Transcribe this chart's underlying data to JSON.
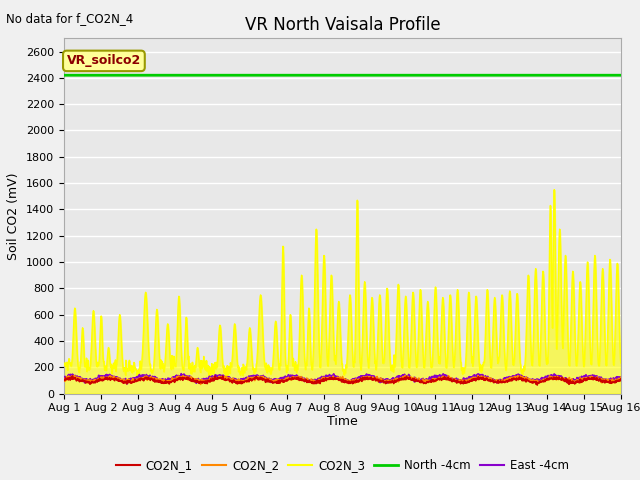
{
  "title": "VR North Vaisala Profile",
  "top_left_text": "No data for f_CO2N_4",
  "annotation_box": "VR_soilco2",
  "ylabel": "Soil CO2 (mV)",
  "xlabel": "Time",
  "ylim": [
    0,
    2700
  ],
  "yticks": [
    0,
    200,
    400,
    600,
    800,
    1000,
    1200,
    1400,
    1600,
    1800,
    2000,
    2200,
    2400,
    2600
  ],
  "xstart": 0,
  "xend": 15,
  "xtick_labels": [
    "Aug 1",
    "Aug 2",
    "Aug 3",
    "Aug 4",
    "Aug 5",
    "Aug 6",
    "Aug 7",
    "Aug 8",
    "Aug 9",
    "Aug 10",
    "Aug 11",
    "Aug 12",
    "Aug 13",
    "Aug 14",
    "Aug 15",
    "Aug 16"
  ],
  "north_4cm_value": 2420,
  "fig_facecolor": "#f0f0f0",
  "plot_bg_color": "#e8e8e8",
  "grid_color": "#ffffff",
  "legend": [
    {
      "label": "CO2N_1",
      "color": "#cc0000",
      "lw": 1.2
    },
    {
      "label": "CO2N_2",
      "color": "#ff8800",
      "lw": 1.2
    },
    {
      "label": "CO2N_3",
      "color": "#ffff00",
      "lw": 1.0
    },
    {
      "label": "North -4cm",
      "color": "#00cc00",
      "lw": 2.0
    },
    {
      "label": "East -4cm",
      "color": "#8800cc",
      "lw": 1.5
    }
  ],
  "annotation_box_color": "#ffff99",
  "annotation_box_edge": "#999900",
  "title_fontsize": 12,
  "tick_fontsize": 8,
  "ylabel_fontsize": 9,
  "xlabel_fontsize": 9
}
